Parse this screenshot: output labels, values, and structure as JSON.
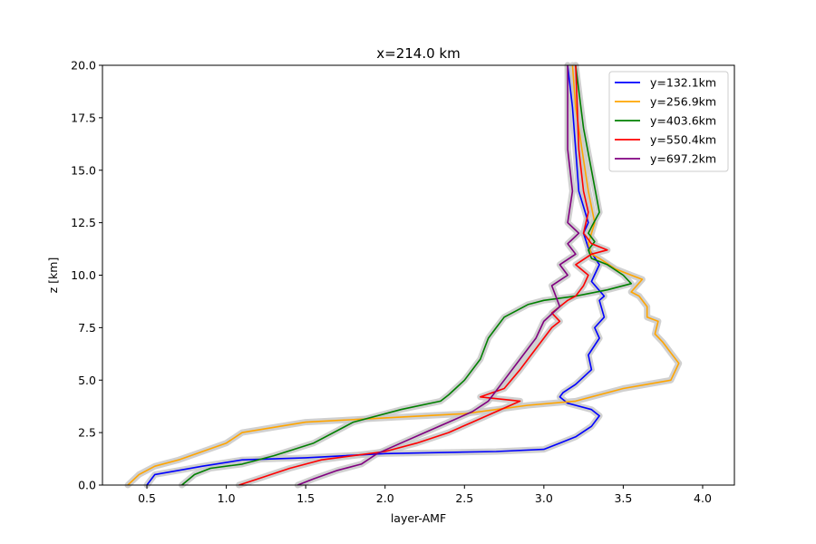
{
  "chart_data": {
    "type": "line",
    "title": "x=214.0 km",
    "xlabel": "layer-AMF",
    "ylabel": "z [km]",
    "xlim": [
      0.22,
      4.2
    ],
    "ylim": [
      0,
      20
    ],
    "xticks": [
      0.5,
      1.0,
      1.5,
      2.0,
      2.5,
      3.0,
      3.5,
      4.0
    ],
    "xtick_labels": [
      "0.5",
      "1.0",
      "1.5",
      "2.0",
      "2.5",
      "3.0",
      "3.5",
      "4.0"
    ],
    "yticks": [
      0,
      2.5,
      5.0,
      7.5,
      10.0,
      12.5,
      15.0,
      17.5,
      20.0
    ],
    "ytick_labels": [
      "0.0",
      "2.5",
      "5.0",
      "7.5",
      "10.0",
      "12.5",
      "15.0",
      "17.5",
      "20.0"
    ],
    "grid": false,
    "legend_position": "top-right",
    "band_color": "#c8c8c8",
    "series": [
      {
        "name": "y=132.1km",
        "color": "#0000ff",
        "x": [
          0.5,
          0.55,
          0.7,
          0.85,
          1.1,
          1.5,
          2.0,
          2.7,
          3.0,
          3.1,
          3.2,
          3.3,
          3.35,
          3.3,
          3.15,
          3.1,
          3.12,
          3.2,
          3.3,
          3.28,
          3.35,
          3.32,
          3.38,
          3.35,
          3.38,
          3.3,
          3.35,
          3.28,
          3.25,
          3.28,
          3.22,
          3.2,
          3.18,
          3.15
        ],
        "y": [
          0.0,
          0.5,
          0.7,
          0.9,
          1.2,
          1.3,
          1.5,
          1.6,
          1.7,
          2.0,
          2.3,
          2.8,
          3.3,
          3.6,
          3.9,
          4.2,
          4.4,
          4.8,
          5.5,
          6.2,
          7.0,
          7.5,
          8.0,
          8.8,
          9.0,
          9.7,
          10.5,
          11.3,
          12.0,
          12.5,
          14.0,
          16.0,
          18.0,
          20.0
        ]
      },
      {
        "name": "y=256.9km",
        "color": "#ffa500",
        "x": [
          0.38,
          0.45,
          0.55,
          0.7,
          0.85,
          1.0,
          1.1,
          1.5,
          2.0,
          2.5,
          2.9,
          3.2,
          3.5,
          3.8,
          3.85,
          3.8,
          3.75,
          3.7,
          3.72,
          3.65,
          3.65,
          3.6,
          3.55,
          3.62,
          3.55,
          3.45,
          3.35,
          3.3,
          3.28,
          3.3,
          3.32,
          3.28,
          3.25,
          3.2,
          3.18
        ],
        "y": [
          0.0,
          0.5,
          0.9,
          1.2,
          1.6,
          2.0,
          2.5,
          3.0,
          3.2,
          3.4,
          3.8,
          4.0,
          4.6,
          5.0,
          5.8,
          6.3,
          6.8,
          7.2,
          7.8,
          8.0,
          8.5,
          9.0,
          9.2,
          9.8,
          10.0,
          10.3,
          10.8,
          11.0,
          11.5,
          12.0,
          12.5,
          14.0,
          15.5,
          18.0,
          20.0
        ]
      },
      {
        "name": "y=403.6km",
        "color": "#008000",
        "x": [
          0.72,
          0.8,
          0.9,
          1.1,
          1.3,
          1.55,
          1.8,
          2.1,
          2.35,
          2.4,
          2.5,
          2.6,
          2.65,
          2.7,
          2.75,
          2.9,
          3.0,
          3.2,
          3.4,
          3.55,
          3.5,
          3.4,
          3.3,
          3.28,
          3.32,
          3.28,
          3.3,
          3.35,
          3.3,
          3.25,
          3.2
        ],
        "y": [
          0.0,
          0.5,
          0.8,
          1.0,
          1.4,
          2.0,
          3.0,
          3.6,
          4.0,
          4.3,
          5.0,
          6.0,
          7.0,
          7.5,
          8.0,
          8.6,
          8.8,
          9.0,
          9.3,
          9.6,
          10.0,
          10.5,
          10.8,
          11.2,
          11.6,
          12.0,
          12.3,
          13.0,
          15.0,
          17.0,
          20.0
        ]
      },
      {
        "name": "y=550.4km",
        "color": "#ff0000",
        "x": [
          1.08,
          1.2,
          1.4,
          1.6,
          1.8,
          2.0,
          2.2,
          2.4,
          2.55,
          2.7,
          2.85,
          2.6,
          2.75,
          2.85,
          2.9,
          2.95,
          3.0,
          3.05,
          3.1,
          3.05,
          3.15,
          3.2,
          3.25,
          3.28,
          3.2,
          3.3,
          3.4,
          3.3,
          3.25,
          3.28,
          3.25,
          3.22,
          3.2
        ],
        "y": [
          0.0,
          0.3,
          0.8,
          1.2,
          1.4,
          1.6,
          2.0,
          2.5,
          3.0,
          3.5,
          4.0,
          4.2,
          4.6,
          5.5,
          6.0,
          6.5,
          7.0,
          7.5,
          7.8,
          8.2,
          8.8,
          9.0,
          9.5,
          10.0,
          10.5,
          11.0,
          11.2,
          11.5,
          12.0,
          13.0,
          14.0,
          16.0,
          20.0
        ]
      },
      {
        "name": "y=697.2km",
        "color": "#800080",
        "x": [
          1.45,
          1.55,
          1.7,
          1.85,
          1.95,
          2.1,
          2.25,
          2.4,
          2.55,
          2.65,
          2.75,
          2.85,
          2.95,
          3.0,
          3.1,
          3.05,
          3.15,
          3.1,
          3.2,
          3.15,
          3.22,
          3.15,
          3.18,
          3.15,
          3.15
        ],
        "y": [
          0.0,
          0.3,
          0.7,
          1.0,
          1.5,
          2.0,
          2.5,
          3.0,
          3.5,
          4.0,
          5.0,
          6.0,
          7.0,
          7.8,
          8.5,
          9.5,
          10.0,
          10.5,
          11.0,
          11.5,
          12.0,
          12.5,
          14.0,
          16.0,
          20.0
        ]
      }
    ]
  }
}
